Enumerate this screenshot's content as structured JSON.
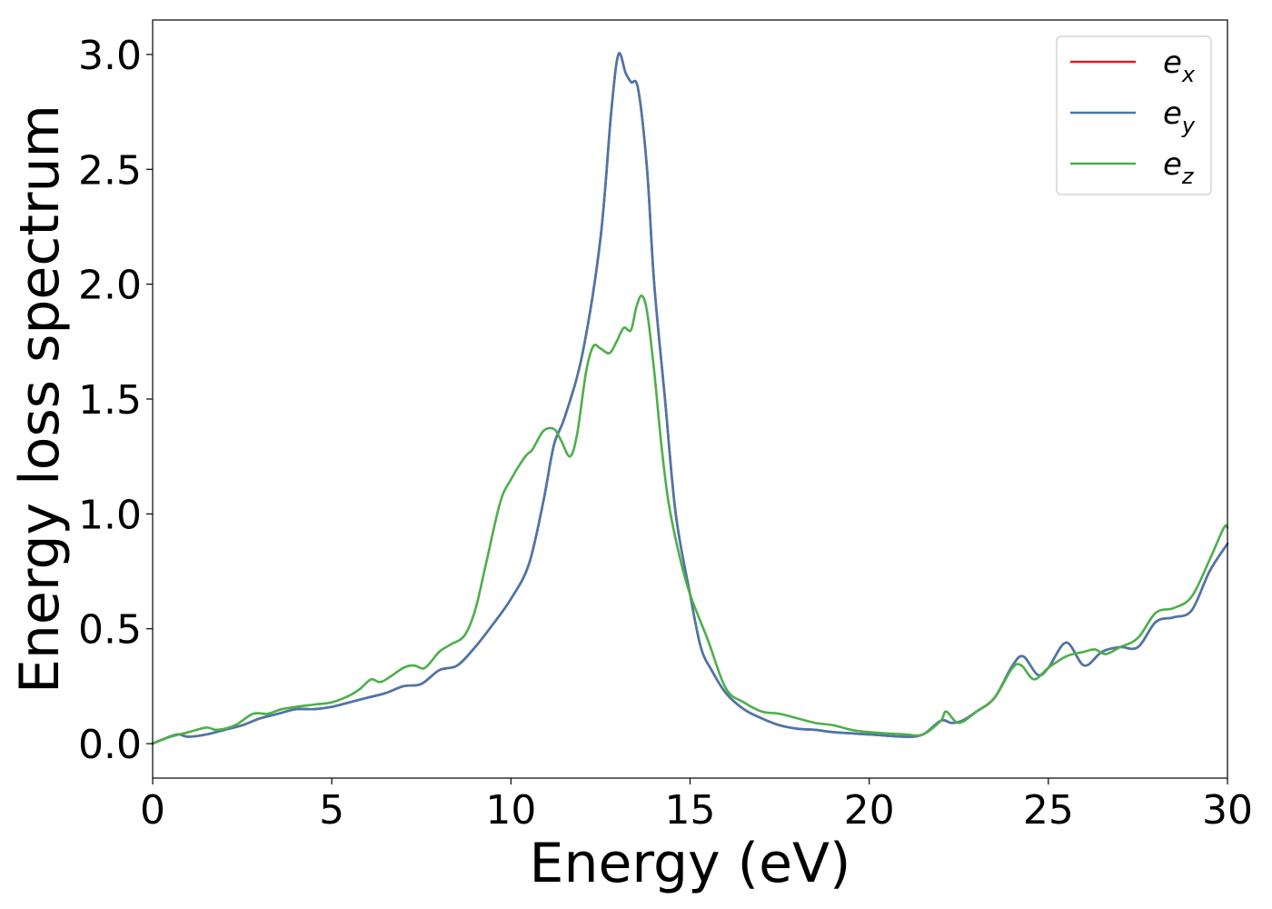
{
  "chart_data": {
    "type": "line",
    "title": "",
    "xlabel": "Energy (eV)",
    "ylabel": "Energy loss spectrum",
    "xlim": [
      0,
      30
    ],
    "ylim": [
      -0.15,
      3.15
    ],
    "xticks": [
      0,
      5,
      10,
      15,
      20,
      25,
      30
    ],
    "xtick_labels": [
      "0",
      "5",
      "10",
      "15",
      "20",
      "25",
      "30"
    ],
    "yticks": [
      0.0,
      0.5,
      1.0,
      1.5,
      2.0,
      2.5,
      3.0
    ],
    "ytick_labels": [
      "0.0",
      "0.5",
      "1.0",
      "1.5",
      "2.0",
      "2.5",
      "3.0"
    ],
    "grid": false,
    "legend_position": "top-right",
    "series": [
      {
        "name": "e_x",
        "label_base": "e",
        "label_sub": "x",
        "color": "#e41a1c",
        "x": [
          0,
          0.3,
          0.7,
          1.0,
          1.5,
          2.0,
          2.5,
          3.0,
          3.5,
          4.0,
          4.5,
          5.0,
          5.5,
          6.0,
          6.5,
          7.0,
          7.5,
          8.0,
          8.5,
          9.0,
          9.5,
          10.0,
          10.5,
          10.9,
          11.2,
          11.5,
          12.0,
          12.5,
          12.8,
          13.0,
          13.2,
          13.35,
          13.55,
          13.8,
          14.0,
          14.3,
          14.6,
          15.0,
          15.3,
          15.6,
          16.0,
          16.5,
          17.0,
          17.5,
          18.0,
          18.5,
          19.0,
          20.0,
          21.0,
          21.5,
          22.0,
          22.3,
          22.6,
          23.0,
          23.5,
          24.0,
          24.3,
          24.7,
          25.0,
          25.5,
          26.0,
          26.5,
          27.0,
          27.5,
          28.0,
          28.5,
          29.0,
          29.5,
          30.0
        ],
        "y": [
          0.0,
          0.02,
          0.04,
          0.03,
          0.04,
          0.06,
          0.08,
          0.11,
          0.13,
          0.15,
          0.15,
          0.16,
          0.18,
          0.2,
          0.22,
          0.25,
          0.26,
          0.32,
          0.34,
          0.42,
          0.52,
          0.63,
          0.78,
          1.05,
          1.3,
          1.42,
          1.7,
          2.2,
          2.75,
          3.0,
          2.92,
          2.88,
          2.85,
          2.5,
          2.0,
          1.5,
          1.0,
          0.65,
          0.42,
          0.32,
          0.22,
          0.15,
          0.11,
          0.08,
          0.065,
          0.06,
          0.05,
          0.04,
          0.03,
          0.04,
          0.1,
          0.09,
          0.1,
          0.14,
          0.2,
          0.34,
          0.38,
          0.3,
          0.33,
          0.44,
          0.34,
          0.4,
          0.42,
          0.42,
          0.53,
          0.55,
          0.58,
          0.75,
          0.87
        ]
      },
      {
        "name": "e_y",
        "label_base": "e",
        "label_sub": "y",
        "color": "#4878a8",
        "x": [
          0,
          0.3,
          0.7,
          1.0,
          1.5,
          2.0,
          2.5,
          3.0,
          3.5,
          4.0,
          4.5,
          5.0,
          5.5,
          6.0,
          6.5,
          7.0,
          7.5,
          8.0,
          8.5,
          9.0,
          9.5,
          10.0,
          10.5,
          10.9,
          11.2,
          11.5,
          12.0,
          12.5,
          12.8,
          13.0,
          13.2,
          13.35,
          13.55,
          13.8,
          14.0,
          14.3,
          14.6,
          15.0,
          15.3,
          15.6,
          16.0,
          16.5,
          17.0,
          17.5,
          18.0,
          18.5,
          19.0,
          20.0,
          21.0,
          21.5,
          22.0,
          22.3,
          22.6,
          23.0,
          23.5,
          24.0,
          24.3,
          24.7,
          25.0,
          25.5,
          26.0,
          26.5,
          27.0,
          27.5,
          28.0,
          28.5,
          29.0,
          29.5,
          30.0
        ],
        "y": [
          0.0,
          0.02,
          0.04,
          0.03,
          0.04,
          0.06,
          0.08,
          0.11,
          0.13,
          0.15,
          0.15,
          0.16,
          0.18,
          0.2,
          0.22,
          0.25,
          0.26,
          0.32,
          0.34,
          0.42,
          0.52,
          0.63,
          0.78,
          1.05,
          1.3,
          1.42,
          1.7,
          2.2,
          2.75,
          3.0,
          2.92,
          2.88,
          2.85,
          2.5,
          2.0,
          1.5,
          1.0,
          0.65,
          0.42,
          0.32,
          0.22,
          0.15,
          0.11,
          0.08,
          0.065,
          0.06,
          0.05,
          0.04,
          0.03,
          0.04,
          0.1,
          0.09,
          0.1,
          0.14,
          0.2,
          0.34,
          0.38,
          0.3,
          0.33,
          0.44,
          0.34,
          0.4,
          0.42,
          0.42,
          0.53,
          0.55,
          0.58,
          0.75,
          0.87
        ]
      },
      {
        "name": "e_z",
        "label_base": "e",
        "label_sub": "z",
        "color": "#4daf4a",
        "x": [
          0,
          0.5,
          1.0,
          1.5,
          1.8,
          2.3,
          2.8,
          3.2,
          3.6,
          4.0,
          4.5,
          5.0,
          5.5,
          5.8,
          6.1,
          6.4,
          7.0,
          7.3,
          7.6,
          8.0,
          8.3,
          8.7,
          9.0,
          9.3,
          9.7,
          10.0,
          10.4,
          10.6,
          10.9,
          11.2,
          11.4,
          11.65,
          11.85,
          12.1,
          12.3,
          12.5,
          12.75,
          12.95,
          13.15,
          13.35,
          13.5,
          13.65,
          13.8,
          14.0,
          14.2,
          14.4,
          14.7,
          15.0,
          15.5,
          16.0,
          16.5,
          17.0,
          17.5,
          18.0,
          18.5,
          19.0,
          19.5,
          20.0,
          21.0,
          21.5,
          22.0,
          22.15,
          22.5,
          23.0,
          23.5,
          24.0,
          24.25,
          24.6,
          25.0,
          25.5,
          26.0,
          26.3,
          26.6,
          27.0,
          27.5,
          28.0,
          28.5,
          29.0,
          29.5,
          29.9,
          30.0
        ],
        "y": [
          0.0,
          0.03,
          0.05,
          0.07,
          0.06,
          0.08,
          0.13,
          0.13,
          0.15,
          0.16,
          0.17,
          0.18,
          0.21,
          0.24,
          0.28,
          0.27,
          0.33,
          0.34,
          0.33,
          0.4,
          0.43,
          0.47,
          0.58,
          0.78,
          1.05,
          1.15,
          1.25,
          1.28,
          1.36,
          1.37,
          1.32,
          1.25,
          1.35,
          1.62,
          1.73,
          1.72,
          1.7,
          1.75,
          1.81,
          1.8,
          1.9,
          1.95,
          1.88,
          1.62,
          1.3,
          1.05,
          0.82,
          0.65,
          0.45,
          0.24,
          0.18,
          0.14,
          0.13,
          0.11,
          0.09,
          0.08,
          0.06,
          0.05,
          0.04,
          0.04,
          0.1,
          0.14,
          0.09,
          0.14,
          0.2,
          0.33,
          0.34,
          0.28,
          0.33,
          0.38,
          0.4,
          0.41,
          0.39,
          0.42,
          0.46,
          0.57,
          0.59,
          0.64,
          0.8,
          0.94,
          0.94
        ]
      }
    ]
  }
}
